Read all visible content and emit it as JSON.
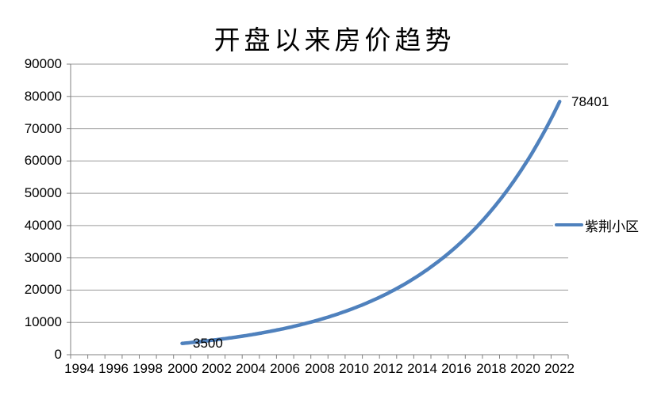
{
  "chart_data": {
    "type": "line",
    "title": "开盘以来房价趋势",
    "xlabel": "",
    "ylabel": "",
    "grid": true,
    "legend_position": "right",
    "x": [
      2000,
      2001,
      2002,
      2003,
      2004,
      2005,
      2006,
      2007,
      2008,
      2009,
      2010,
      2011,
      2012,
      2013,
      2014,
      2015,
      2016,
      2017,
      2018,
      2019,
      2020,
      2021,
      2022
    ],
    "series": [
      {
        "name": "紫荆小区",
        "color": "#4F81BD",
        "start_year": 2000,
        "end_year": 2022,
        "values": [
          3500,
          4031,
          4643,
          5348,
          6160,
          7095,
          8172,
          9413,
          10841,
          12487,
          14383,
          16566,
          19080,
          21977,
          25313,
          29155,
          33581,
          38679,
          44550,
          51313,
          59102,
          68074,
          78401
        ]
      }
    ],
    "point_labels": {
      "first": "3500",
      "last": "78401"
    },
    "x_axis": {
      "start_year": 1994,
      "end_year": 2022,
      "tick_step": 1,
      "label_step": 2,
      "labels": [
        "1994",
        "1996",
        "1998",
        "2000",
        "2002",
        "2004",
        "2006",
        "2008",
        "2010",
        "2012",
        "2014",
        "2016",
        "2018",
        "2020",
        "2022"
      ]
    },
    "y_axis": {
      "min": 0,
      "max": 90000,
      "step": 10000,
      "labels": [
        "0",
        "10000",
        "20000",
        "30000",
        "40000",
        "50000",
        "60000",
        "70000",
        "80000",
        "90000"
      ]
    },
    "legend": {
      "entries": [
        {
          "label": "紫荆小区",
          "color": "#4F81BD"
        }
      ]
    },
    "colors": {
      "line": "#4F81BD",
      "gridline": "#9A9A9A",
      "axis": "#808080",
      "text": "#000000",
      "background": "#FFFFFF"
    }
  }
}
